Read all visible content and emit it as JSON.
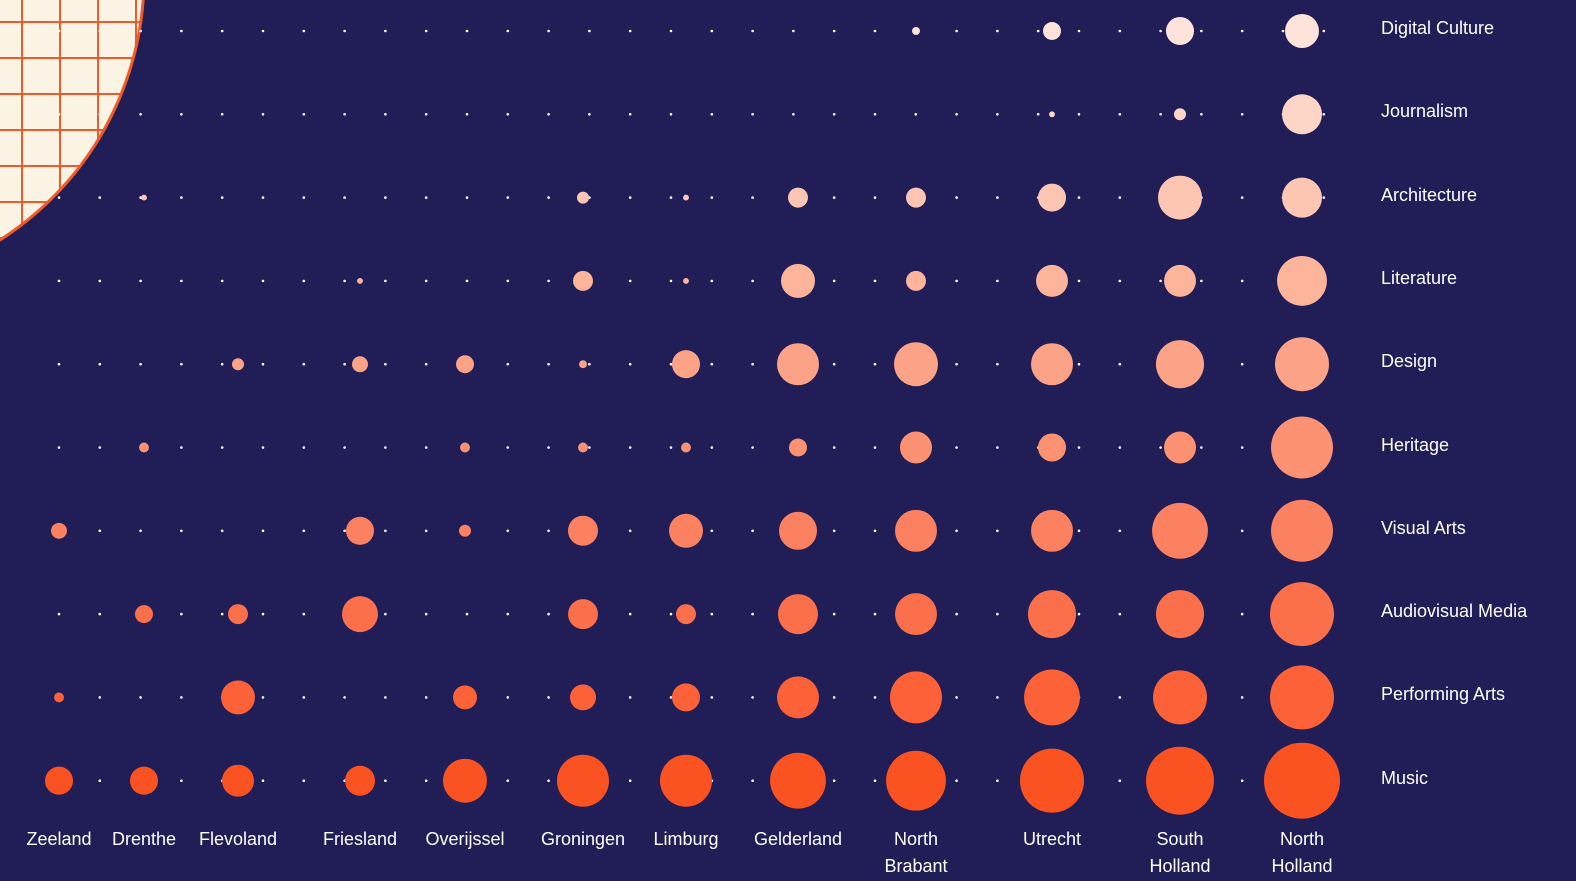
{
  "chart_data": {
    "type": "bubble-grid",
    "categories": [
      "Zeeland",
      "Drenthe",
      "Flevoland",
      "Friesland",
      "Overijssel",
      "Groningen",
      "Limburg",
      "Gelderland",
      "North Brabant",
      "Utrecht",
      "South Holland",
      "North Holland"
    ],
    "series": [
      {
        "name": "Digital Culture",
        "color": "#fde3da",
        "values": [
          0,
          0,
          0,
          0,
          0,
          0,
          0,
          0,
          1.1,
          5.6,
          13.6,
          20
        ]
      },
      {
        "name": "Journalism",
        "color": "#fdd6c8",
        "values": [
          0,
          0,
          0,
          0,
          0,
          0,
          0,
          0,
          0,
          0.6,
          2.5,
          27.7
        ]
      },
      {
        "name": "Architecture",
        "color": "#fdc6b2",
        "values": [
          0,
          0.6,
          0,
          0,
          0,
          2.5,
          0.6,
          6.9,
          6.9,
          13.6,
          33.5,
          27.7
        ]
      },
      {
        "name": "Literature",
        "color": "#fcb49b",
        "values": [
          0,
          0,
          0,
          0.6,
          0,
          6.9,
          0.6,
          20,
          6.9,
          17.7,
          17.7,
          43
        ]
      },
      {
        "name": "Design",
        "color": "#fca387",
        "values": [
          0,
          0,
          2.5,
          4.4,
          5.6,
          1.1,
          13.6,
          30.5,
          33.5,
          30.5,
          40,
          50.5
        ]
      },
      {
        "name": "Heritage",
        "color": "#fc9272",
        "values": [
          0,
          1.7,
          0,
          0,
          1.7,
          1.7,
          1.7,
          5.6,
          17.7,
          13.6,
          17.7,
          66.5
        ]
      },
      {
        "name": "Visual Arts",
        "color": "#fc8160",
        "values": [
          4.4,
          0,
          0,
          13.6,
          2.5,
          15.6,
          20,
          25,
          30.5,
          30.5,
          54,
          66.5
        ]
      },
      {
        "name": "Audiovisual Media",
        "color": "#fc6f4b",
        "values": [
          0,
          5.6,
          6.9,
          22.4,
          0,
          15.6,
          6.9,
          27.7,
          30.5,
          40,
          40,
          71
        ]
      },
      {
        "name": "Performing Arts",
        "color": "#fc6138",
        "values": [
          1.7,
          0,
          20,
          0,
          10,
          11.7,
          13.6,
          30.5,
          46.8,
          54,
          50.5,
          71
        ]
      },
      {
        "name": "Music",
        "color": "#fb5222",
        "values": [
          13.6,
          13.6,
          17.7,
          15.6,
          33.5,
          46.8,
          46.8,
          54,
          62,
          71,
          80,
          100
        ]
      }
    ]
  }
}
